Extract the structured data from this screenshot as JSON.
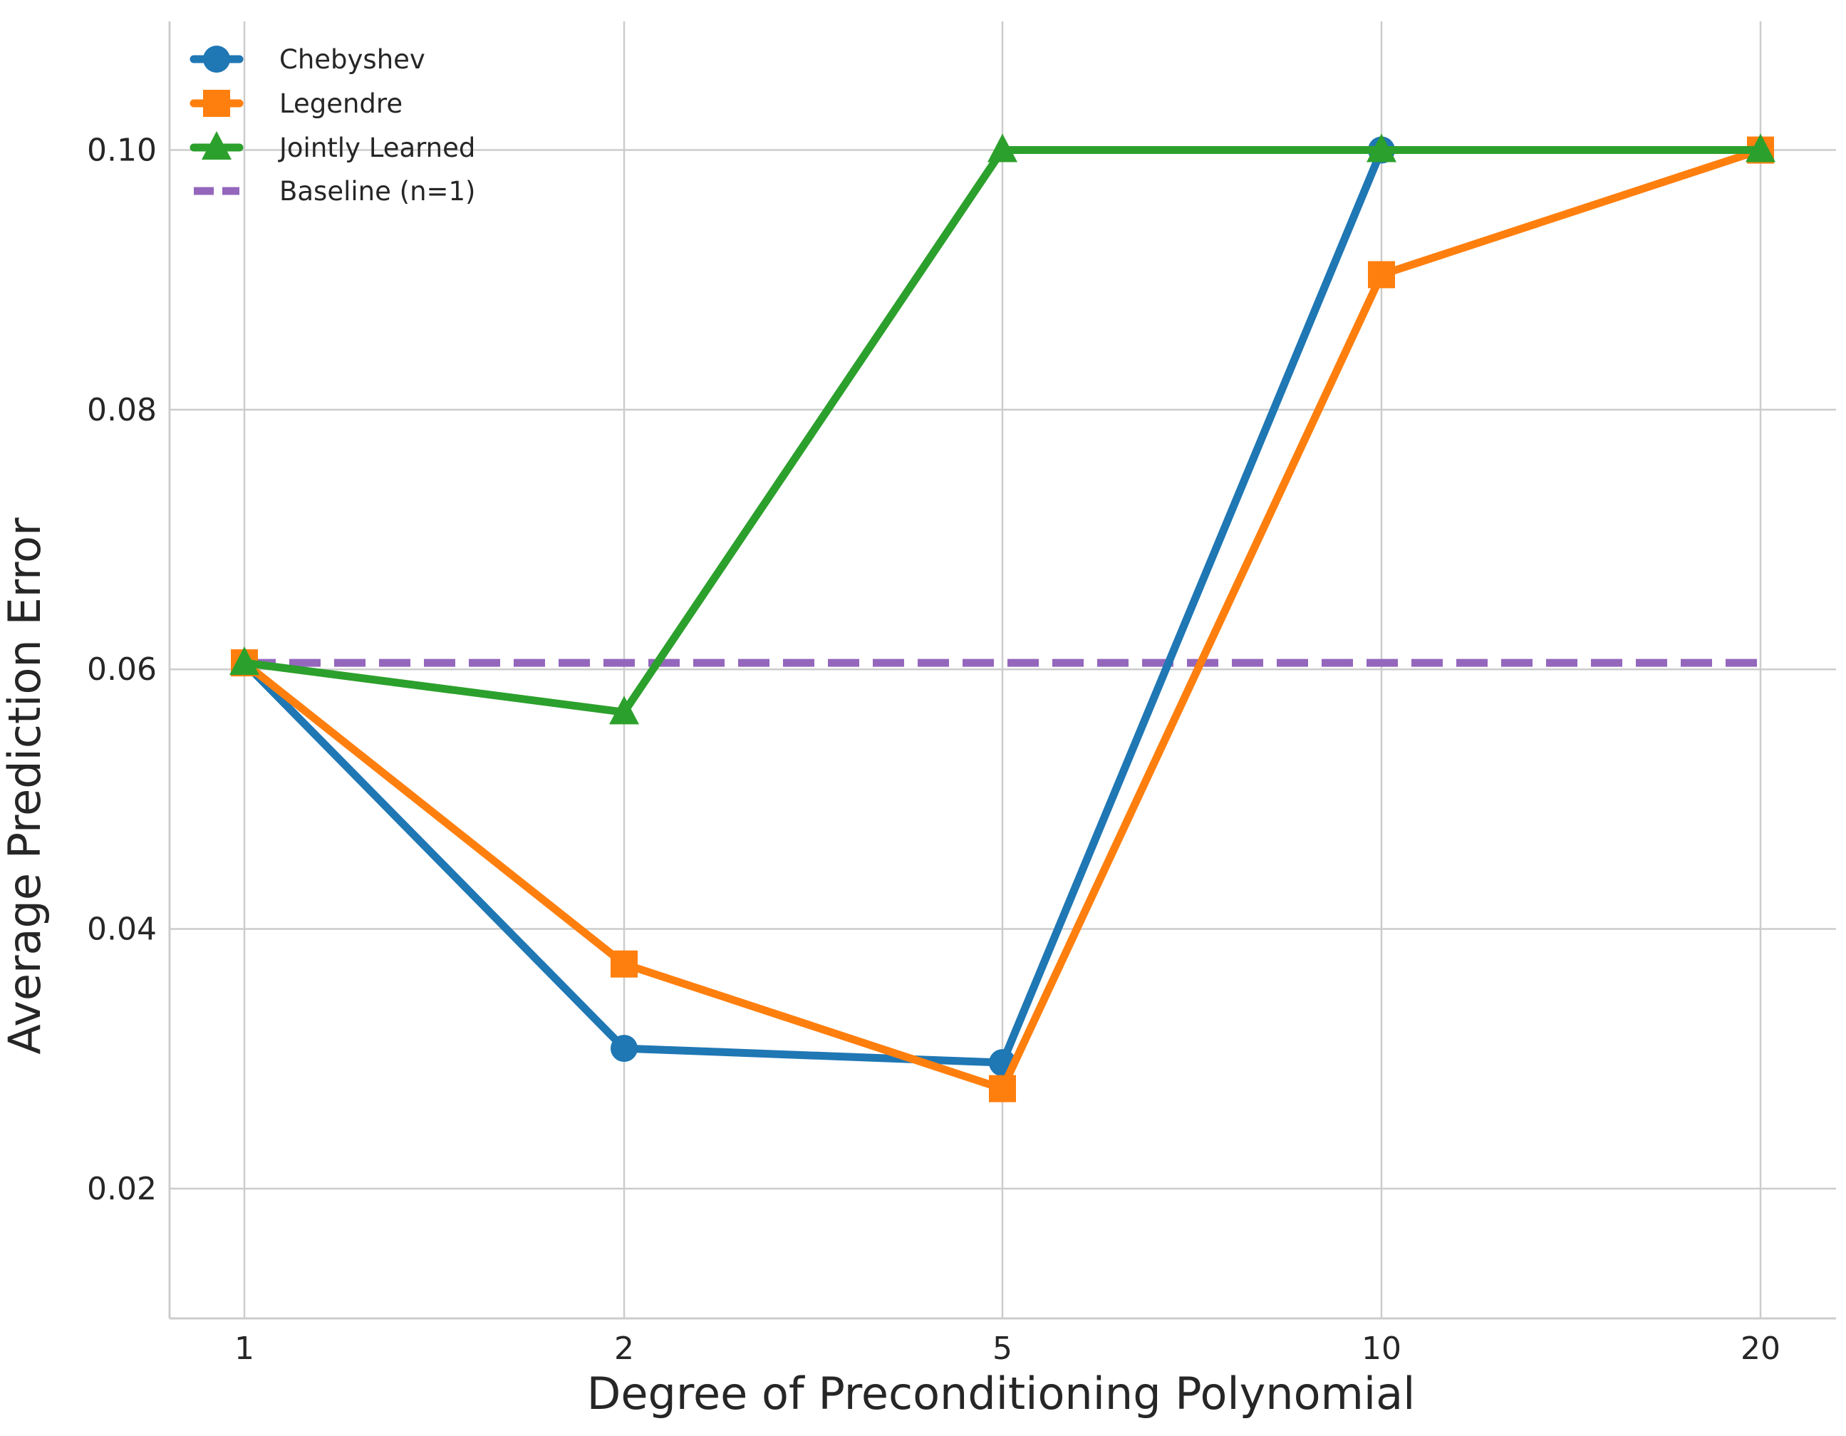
{
  "chart_data": {
    "type": "line",
    "title": "",
    "xlabel": "Degree of Preconditioning Polynomial",
    "ylabel": "Average Prediction Error",
    "x_tick_labels": [
      "1",
      "2",
      "5",
      "10",
      "20"
    ],
    "x_scale": "categorical",
    "y_ticks": [
      0.02,
      0.04,
      0.06,
      0.08,
      0.1
    ],
    "y_tick_labels": [
      "0.02",
      "0.04",
      "0.06",
      "0.08",
      "0.10"
    ],
    "ylim": [
      0.01,
      0.11
    ],
    "grid": true,
    "legend_position": "top-left",
    "series": [
      {
        "name": "Chebyshev",
        "color": "#1f77b4",
        "marker": "circle",
        "linestyle": "solid",
        "values": [
          0.0605,
          0.0308,
          0.0297,
          0.1,
          0.1
        ]
      },
      {
        "name": "Legendre",
        "color": "#ff7f0e",
        "marker": "square",
        "linestyle": "solid",
        "values": [
          0.0605,
          0.0373,
          0.0277,
          0.0904,
          0.1
        ]
      },
      {
        "name": "Jointly Learned",
        "color": "#2ca02c",
        "marker": "triangle",
        "linestyle": "solid",
        "values": [
          0.0605,
          0.0567,
          0.1,
          0.1,
          0.1
        ]
      },
      {
        "name": "Baseline (n=1)",
        "color": "#9467bd",
        "marker": "none",
        "linestyle": "dashed",
        "values": [
          0.0605,
          0.0605,
          0.0605,
          0.0605,
          0.0605
        ]
      }
    ]
  }
}
